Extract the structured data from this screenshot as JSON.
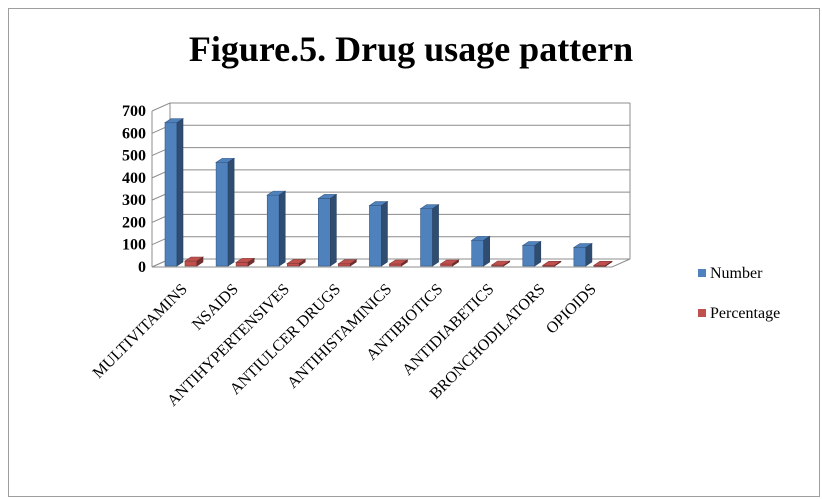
{
  "chart_data": {
    "type": "bar",
    "title": "Figure.5. Drug usage pattern",
    "xlabel": "",
    "ylabel": "",
    "ylim": [
      0,
      700
    ],
    "yticks": [
      0,
      100,
      200,
      300,
      400,
      500,
      600,
      700
    ],
    "grid": true,
    "legend_position": "right",
    "categories": [
      "MULTIVITAMINS",
      "NSAIDS",
      "ANTIHYPERTENSIVES",
      "ANTIULCER DRUGS",
      "ANTIHISTAMINICS",
      "ANTIBIOTICS",
      "ANTIDIABETICS",
      "BRONCHODILATORS",
      "OPIOIDS"
    ],
    "series": [
      {
        "name": "Number",
        "color": "#4f81bd",
        "values": [
          643,
          465,
          318,
          303,
          271,
          257,
          115,
          92,
          83
        ]
      },
      {
        "name": "Percentage",
        "color": "#c0504d",
        "values": [
          22,
          16,
          11,
          10,
          9,
          9,
          4,
          3,
          3
        ]
      }
    ]
  }
}
